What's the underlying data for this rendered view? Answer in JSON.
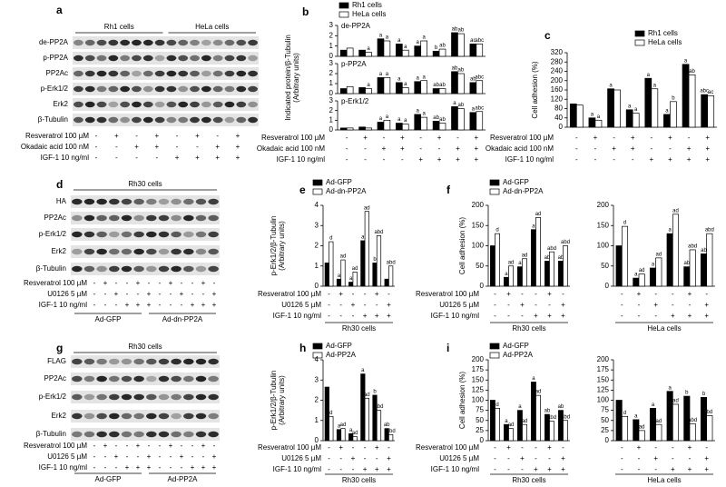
{
  "blots": [
    {
      "panel": "a",
      "headers": [
        "Rh1 cells",
        "HeLa cells"
      ],
      "rows": [
        "de-PP2A",
        "p-PP2A",
        "PP2Ac",
        "p-Erk1/2",
        "Erk2",
        "β-Tubulin"
      ],
      "treatments": [
        {
          "label": "Resveratrol 100 µM",
          "signs": [
            "-",
            "+",
            "-",
            "+",
            "-",
            "+",
            "-",
            "+"
          ]
        },
        {
          "label": "Okadaic acid 100 nM",
          "signs": [
            "-",
            "-",
            "+",
            "+",
            "-",
            "-",
            "+",
            "+"
          ]
        },
        {
          "label": "IGF-1 10 ng/ml",
          "signs": [
            "-",
            "-",
            "-",
            "-",
            "+",
            "+",
            "+",
            "+"
          ]
        }
      ]
    },
    {
      "panel": "d",
      "headers": [
        "Rh30 cells"
      ],
      "rows": [
        "HA",
        "PP2Ac",
        "p-Erk1/2",
        "Erk2",
        "β-Tubulin"
      ],
      "treatments": [
        {
          "label": "Resveratrol 100 µM",
          "signs": [
            "-",
            "+",
            "-",
            "-",
            "+",
            "-",
            "-",
            "+",
            "-",
            "-",
            "+",
            "-"
          ]
        },
        {
          "label": "U0126 5 µM",
          "signs": [
            "-",
            "-",
            "+",
            "-",
            "-",
            "+",
            "-",
            "-",
            "+",
            "-",
            "-",
            "+"
          ]
        },
        {
          "label": "IGF-1 10 ng/ml",
          "signs": [
            "-",
            "-",
            "-",
            "+",
            "+",
            "+",
            "-",
            "-",
            "-",
            "+",
            "+",
            "+"
          ]
        }
      ],
      "groups": [
        "Ad-GFP",
        "Ad-dn-PP2A"
      ]
    },
    {
      "panel": "g",
      "headers": [
        "Rh30 cells"
      ],
      "rows": [
        "FLAG",
        "PP2Ac",
        "p-Erk1/2",
        "Erk2",
        "β-Tubulin"
      ],
      "treatments": [
        {
          "label": "Resveratrol 100 µM",
          "signs": [
            "-",
            "+",
            "-",
            "-",
            "+",
            "-",
            "-",
            "+",
            "-",
            "-",
            "+",
            "-"
          ]
        },
        {
          "label": "U0126 5 µM",
          "signs": [
            "-",
            "-",
            "+",
            "-",
            "-",
            "+",
            "-",
            "-",
            "+",
            "-",
            "-",
            "+"
          ]
        },
        {
          "label": "IGF-1 10 ng/ml",
          "signs": [
            "-",
            "-",
            "-",
            "+",
            "+",
            "+",
            "-",
            "-",
            "-",
            "+",
            "+",
            "+"
          ]
        }
      ],
      "groups": [
        "Ad-GFP",
        "Ad-PP2A"
      ]
    }
  ],
  "chart_data": [
    {
      "type": "bar",
      "panel": "b",
      "ylabel": [
        "Indicated protein/β-Tubulin",
        "(Arbitrary units)"
      ],
      "series": [
        {
          "name": "Rh1 cells",
          "color": "#000000"
        },
        {
          "name": "HeLa cells",
          "color": "#ffffff"
        }
      ],
      "ylim": [
        0,
        3
      ],
      "yticks": [
        0,
        1,
        2,
        3
      ],
      "subplots": [
        {
          "label": "de-PP2A",
          "values": [
            [
              0.6,
              0.6,
              1.7,
              1.2,
              1.0,
              0.5,
              2.3,
              1.2
            ],
            [
              0.8,
              0.4,
              1.5,
              0.6,
              1.5,
              0.7,
              2.2,
              1.2
            ]
          ],
          "letters": [
            [
              null,
              null,
              "a",
              "a",
              "a",
              "b",
              "ab",
              "ac"
            ],
            [
              null,
              "a",
              "a",
              "a",
              "a",
              "ab",
              "ab",
              "abc"
            ]
          ]
        },
        {
          "label": "p-PP2A",
          "values": [
            [
              0.5,
              0.6,
              1.6,
              1.1,
              1.2,
              0.5,
              2.2,
              1.1
            ],
            [
              0.7,
              0.5,
              1.6,
              0.6,
              1.3,
              0.5,
              2.0,
              1.3
            ]
          ],
          "letters": [
            [
              null,
              null,
              "a",
              "a",
              "a",
              "ab",
              "ab",
              "ab"
            ],
            [
              null,
              "a",
              "a",
              "a",
              "a",
              "ab",
              "ab",
              "abc"
            ]
          ]
        },
        {
          "label": "p-Erk1/2",
          "values": [
            [
              0.2,
              0.3,
              0.8,
              0.7,
              1.6,
              0.9,
              2.4,
              1.8
            ],
            [
              0.2,
              0.2,
              1.0,
              0.6,
              1.3,
              0.7,
              2.2,
              1.9
            ]
          ],
          "letters": [
            [
              null,
              null,
              "a",
              "a",
              "a",
              "ab",
              "a",
              "a"
            ],
            [
              null,
              null,
              "a",
              "a",
              "a",
              "ab",
              "ab",
              "abc"
            ]
          ]
        }
      ],
      "conditions": [
        {
          "label": "Resveratrol 100 µM",
          "signs": [
            "-",
            "+",
            "-",
            "+",
            "-",
            "+",
            "-",
            "+"
          ]
        },
        {
          "label": "Okadaic acid 100 nM",
          "signs": [
            "-",
            "-",
            "+",
            "+",
            "-",
            "-",
            "+",
            "+"
          ]
        },
        {
          "label": "IGF-1 10 ng/ml",
          "signs": [
            "-",
            "-",
            "-",
            "-",
            "+",
            "+",
            "+",
            "+"
          ]
        }
      ]
    },
    {
      "type": "bar",
      "panel": "c",
      "ylabel": [
        "Cell adhesion (%)"
      ],
      "series": [
        {
          "name": "Rh1 cells",
          "color": "#000000"
        },
        {
          "name": "HeLa cells",
          "color": "#ffffff"
        }
      ],
      "ylim": [
        0,
        320
      ],
      "yticks": [
        0,
        40,
        80,
        120,
        160,
        200,
        240,
        280,
        320
      ],
      "subplots": [
        {
          "values": [
            [
              100,
              40,
              165,
              75,
              210,
              55,
              270,
              140
            ],
            [
              95,
              30,
              160,
              60,
              165,
              110,
              225,
              135
            ]
          ],
          "letters": [
            [
              null,
              "a",
              "a",
              "a",
              "a",
              "a",
              "a",
              "abc"
            ],
            [
              null,
              "a",
              null,
              "a",
              "a",
              "b",
              "ab",
              "ac"
            ]
          ]
        }
      ],
      "conditions": [
        {
          "label": "Resveratrol 100 µM",
          "signs": [
            "-",
            "+",
            "-",
            "+",
            "-",
            "+",
            "-",
            "+"
          ]
        },
        {
          "label": "Okadaic acid 100 nM",
          "signs": [
            "-",
            "-",
            "+",
            "+",
            "-",
            "-",
            "+",
            "+"
          ]
        },
        {
          "label": "IGF-1 10 ng/ml",
          "signs": [
            "-",
            "-",
            "-",
            "-",
            "+",
            "+",
            "+",
            "+"
          ]
        }
      ]
    },
    {
      "type": "bar",
      "panel": "e",
      "ylabel": [
        "p-Erk1/2/β-Tubulin",
        "(Arbitrary units)"
      ],
      "series": [
        {
          "name": "Ad-GFP",
          "color": "#000000"
        },
        {
          "name": "Ad-dn-PP2A",
          "color": "#ffffff"
        }
      ],
      "ylim": [
        0,
        4
      ],
      "yticks": [
        0,
        1,
        2,
        3,
        4
      ],
      "subplots": [
        {
          "group": "Rh30 cells",
          "values": [
            [
              1.15,
              0.35,
              0.2,
              2.25,
              1.15,
              0.35
            ],
            [
              2.2,
              1.3,
              0.7,
              3.7,
              2.5,
              1.0
            ]
          ],
          "letters": [
            [
              null,
              "a",
              "a",
              "a",
              "b",
              null
            ],
            [
              "d",
              "ad",
              "ad",
              "ad",
              "abd",
              "abd"
            ]
          ]
        }
      ],
      "conditions": [
        {
          "label": "Resveratrol 100 µM",
          "signs": [
            "-",
            "+",
            "-",
            "-",
            "+",
            "-"
          ]
        },
        {
          "label": "U0126 5 µM",
          "signs": [
            "-",
            "-",
            "+",
            "-",
            "-",
            "+"
          ]
        },
        {
          "label": "IGF-1 10 ng/ml",
          "signs": [
            "-",
            "-",
            "-",
            "+",
            "+",
            "+"
          ]
        }
      ]
    },
    {
      "type": "bar",
      "panel": "f",
      "ylabel": [
        "Cell adhesion (%)"
      ],
      "series": [
        {
          "name": "Ad-GFP",
          "color": "#000000"
        },
        {
          "name": "Ad-dn-PP2A",
          "color": "#ffffff"
        }
      ],
      "ylim": [
        0,
        200
      ],
      "yticks": [
        0,
        50,
        100,
        150,
        200
      ],
      "subplots": [
        {
          "group": "Rh30 cells",
          "values": [
            [
              100,
              22,
              48,
              140,
              62,
              62
            ],
            [
              130,
              50,
              68,
              170,
              85,
              100
            ]
          ],
          "letters": [
            [
              null,
              "a",
              "a",
              "a",
              "ab",
              "ab"
            ],
            [
              "d",
              "ad",
              "ad",
              "ad",
              "abd",
              "abd"
            ]
          ]
        },
        {
          "group": "HeLa cells",
          "values": [
            [
              100,
              20,
              45,
              130,
              48,
              80
            ],
            [
              148,
              30,
              70,
              178,
              90,
              130
            ]
          ],
          "letters": [
            [
              null,
              "a",
              "a",
              "a",
              "ab",
              "ab"
            ],
            [
              "d",
              "ad",
              "ad",
              "ad",
              "abd",
              "abd"
            ]
          ]
        }
      ],
      "conditions": [
        {
          "label": "Resveratrol 100 µM",
          "signs": [
            "-",
            "+",
            "-",
            "-",
            "+",
            "-"
          ]
        },
        {
          "label": "U0126 5 µM",
          "signs": [
            "-",
            "-",
            "+",
            "-",
            "-",
            "+"
          ]
        },
        {
          "label": "IGF-1 10 ng/ml",
          "signs": [
            "-",
            "-",
            "-",
            "+",
            "+",
            "+"
          ]
        }
      ]
    },
    {
      "type": "bar",
      "panel": "h",
      "ylabel": [
        "p-Erk1/2/β-Tubulin",
        "(Arbitrary units)"
      ],
      "series": [
        {
          "name": "Ad-GFP",
          "color": "#000000"
        },
        {
          "name": "Ad-PP2A",
          "color": "#ffffff"
        }
      ],
      "ylim": [
        0,
        4
      ],
      "yticks": [
        0,
        1,
        2,
        3,
        4
      ],
      "subplots": [
        {
          "group": "Rh30 cells",
          "values": [
            [
              2.65,
              0.55,
              0.35,
              3.3,
              2.25,
              0.6
            ],
            [
              1.2,
              0.6,
              0.2,
              2.1,
              1.5,
              0.3
            ]
          ],
          "letters": [
            [
              null,
              "a",
              "a",
              "a",
              "b",
              "ab"
            ],
            [
              "d",
              "ad",
              "ad",
              "ad",
              "abd",
              "abd"
            ]
          ]
        }
      ],
      "conditions": [
        {
          "label": "Resveratrol 100 µM",
          "signs": [
            "-",
            "+",
            "-",
            "-",
            "+",
            "-"
          ]
        },
        {
          "label": "U0126 5 µM",
          "signs": [
            "-",
            "-",
            "+",
            "-",
            "-",
            "+"
          ]
        },
        {
          "label": "IGF-1 10 ng/ml",
          "signs": [
            "-",
            "-",
            "-",
            "+",
            "+",
            "+"
          ]
        }
      ]
    },
    {
      "type": "bar",
      "panel": "i",
      "ylabel": [
        "Cell adhesion (%)"
      ],
      "series": [
        {
          "name": "Ad-GFP",
          "color": "#000000"
        },
        {
          "name": "Ad-PP2A",
          "color": "#ffffff"
        }
      ],
      "ylim": [
        0,
        200
      ],
      "yticks": [
        0,
        25,
        50,
        75,
        100,
        125,
        150,
        175,
        200
      ],
      "subplots": [
        {
          "group": "Rh30 cells",
          "values": [
            [
              100,
              40,
              75,
              145,
              65,
              75
            ],
            [
              80,
              30,
              40,
              112,
              48,
              50
            ]
          ],
          "letters": [
            [
              null,
              "a",
              "a",
              "a",
              "ab",
              "ab"
            ],
            [
              "d",
              "ad",
              "ad",
              "ad",
              "abd",
              "abd"
            ]
          ]
        },
        {
          "group": "HeLa cells",
          "values": [
            [
              100,
              52,
              80,
              122,
              110,
              107
            ],
            [
              60,
              25,
              40,
              90,
              42,
              62
            ]
          ],
          "letters": [
            [
              null,
              "a",
              "a",
              "a",
              "b",
              "b"
            ],
            [
              "d",
              "ad",
              "ad",
              "ad",
              "abd",
              "bd"
            ]
          ]
        }
      ],
      "conditions": [
        {
          "label": "Resveratrol 100 µM",
          "signs": [
            "-",
            "+",
            "-",
            "-",
            "+",
            "-"
          ]
        },
        {
          "label": "U0126 5 µM",
          "signs": [
            "-",
            "-",
            "+",
            "-",
            "-",
            "+"
          ]
        },
        {
          "label": "IGF-1 10 ng/ml",
          "signs": [
            "-",
            "-",
            "-",
            "+",
            "+",
            "+"
          ]
        }
      ]
    }
  ]
}
